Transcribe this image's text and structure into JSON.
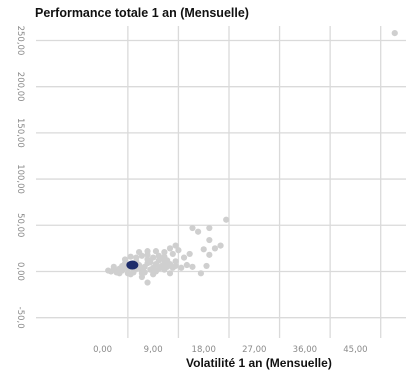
{
  "chart_data": {
    "type": "scatter",
    "title": "Performance totale 1 an (Mensuelle)",
    "xlabel": "Volatilité 1 an (Mensuelle)",
    "ylabel": "",
    "xlim": [
      -9,
      54
    ],
    "ylim": [
      -72,
      270
    ],
    "x_ticks": [
      "0,00",
      "9,00",
      "18,00",
      "27,00",
      "36,00",
      "45,00"
    ],
    "y_ticks": [
      "-50,0",
      "0,00",
      "50,00",
      "100,00",
      "150,00",
      "200,00",
      "250,00"
    ],
    "grid": true,
    "legend": "none",
    "colors": {
      "points": "#cfcfcf",
      "highlight": "#1f2d6b",
      "grid": "#dadada"
    },
    "series": [
      {
        "role": "universe",
        "points": [
          [
            1.0,
            1
          ],
          [
            1.5,
            0
          ],
          [
            2.0,
            2
          ],
          [
            2.5,
            -1
          ],
          [
            3.0,
            3
          ],
          [
            3.5,
            1
          ],
          [
            4.0,
            4
          ],
          [
            4.5,
            -2
          ],
          [
            5.0,
            6
          ],
          [
            5.5,
            2
          ],
          [
            6.0,
            3
          ],
          [
            6.5,
            7
          ],
          [
            7.0,
            1
          ],
          [
            7.5,
            5
          ],
          [
            8.0,
            9
          ],
          [
            8.5,
            2
          ],
          [
            9.0,
            4
          ],
          [
            9.5,
            8
          ],
          [
            10.0,
            3
          ],
          [
            10.5,
            6
          ],
          [
            11.0,
            2
          ],
          [
            11.5,
            5
          ],
          [
            12.0,
            8
          ],
          [
            12.5,
            4
          ],
          [
            13.0,
            6
          ],
          [
            2.0,
            5
          ],
          [
            3.0,
            -2
          ],
          [
            4.0,
            9
          ],
          [
            5.0,
            -3
          ],
          [
            6.0,
            11
          ],
          [
            7.0,
            -2
          ],
          [
            8.0,
            13
          ],
          [
            9.0,
            -3
          ],
          [
            10.0,
            12
          ],
          [
            11.0,
            9
          ],
          [
            12.0,
            -2
          ],
          [
            13.0,
            11
          ],
          [
            14.0,
            4
          ],
          [
            15.0,
            7
          ],
          [
            16.0,
            5
          ],
          [
            3.5,
            6
          ],
          [
            4.5,
            3
          ],
          [
            5.5,
            -1
          ],
          [
            6.5,
            4
          ],
          [
            7.5,
            -1
          ],
          [
            8.5,
            10
          ],
          [
            9.5,
            0
          ],
          [
            10.5,
            14
          ],
          [
            11.5,
            12
          ],
          [
            4.0,
            13
          ],
          [
            5.0,
            16
          ],
          [
            6.0,
            15
          ],
          [
            7.0,
            17
          ],
          [
            8.0,
            18
          ],
          [
            9.0,
            15
          ],
          [
            10.0,
            17
          ],
          [
            11.0,
            16
          ],
          [
            6.5,
            21
          ],
          [
            8.0,
            22
          ],
          [
            9.5,
            22
          ],
          [
            11.0,
            21
          ],
          [
            12.5,
            19
          ],
          [
            7.0,
            -6
          ],
          [
            8.0,
            -12
          ],
          [
            14.5,
            15
          ],
          [
            15.5,
            19
          ],
          [
            13.5,
            23
          ],
          [
            12.0,
            25
          ],
          [
            13.0,
            28
          ],
          [
            16.0,
            47
          ],
          [
            17.0,
            43
          ],
          [
            19.0,
            34
          ],
          [
            20.0,
            25
          ],
          [
            19.0,
            47
          ],
          [
            22.0,
            56
          ],
          [
            21.0,
            28
          ],
          [
            18.0,
            24
          ],
          [
            18.5,
            6
          ],
          [
            17.5,
            -2
          ],
          [
            19.0,
            18
          ],
          [
            52.0,
            258
          ]
        ]
      },
      {
        "role": "highlight",
        "points": [
          [
            5.3,
            7
          ]
        ]
      }
    ]
  }
}
